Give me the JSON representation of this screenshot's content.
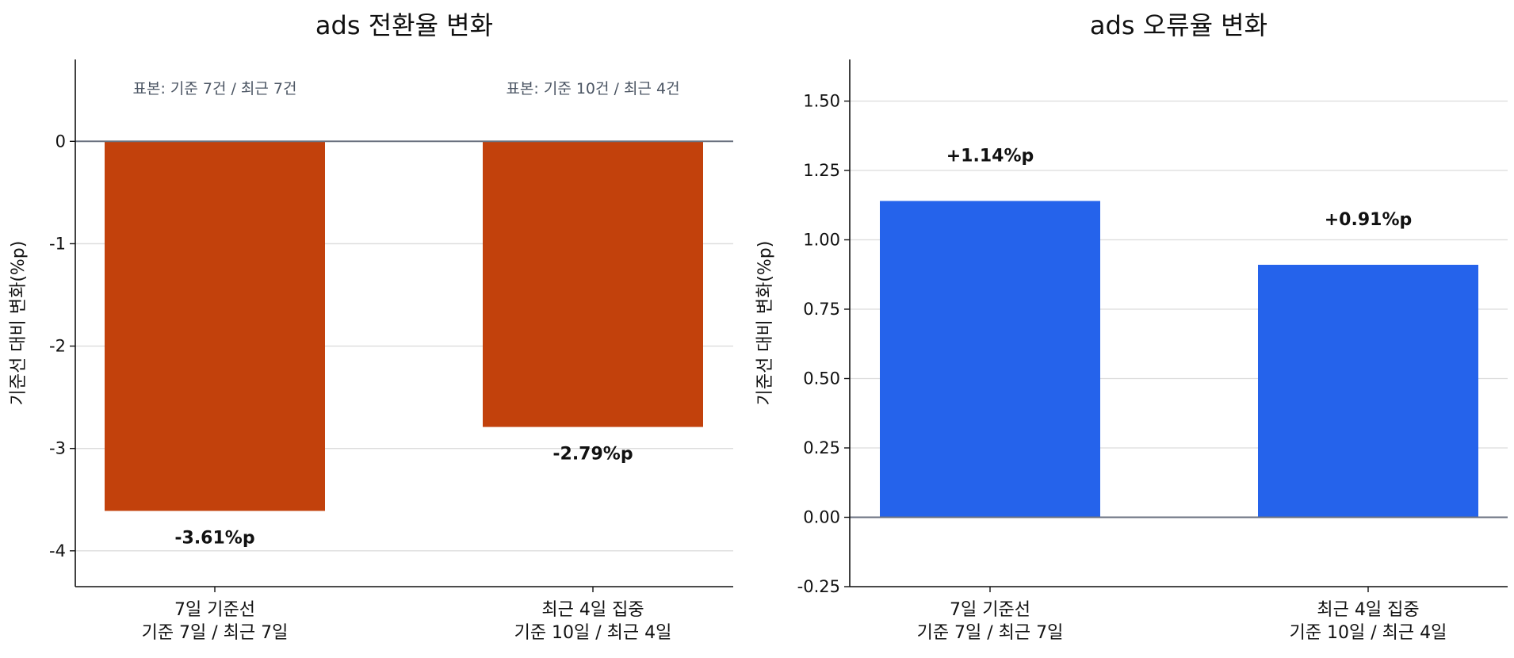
{
  "colors": {
    "negative_bar": "#c2410c",
    "positive_bar": "#2563eb",
    "grid": "#dcdcdc",
    "zero_line": "#6b7280",
    "axis": "#111111"
  },
  "chart_data": [
    {
      "type": "bar",
      "title": "ads 전환율 변화",
      "ylabel": "기준선 대비 변화(%p)",
      "categories": [
        [
          "7일 기준선",
          "기준 7일 / 최근 7일"
        ],
        [
          "최근 4일 집중",
          "기준 10일 / 최근 4일"
        ]
      ],
      "values": [
        -3.61,
        -2.79
      ],
      "data_labels": [
        "-3.61%p",
        "-2.79%p"
      ],
      "sample_notes": [
        "표본: 기준 7건 / 최근 7건",
        "표본: 기준 10건 / 최근 4건"
      ],
      "yticks": [
        0,
        -1,
        -2,
        -3,
        -4
      ],
      "ytick_labels": [
        "0",
        "-1",
        "-2",
        "-3",
        "-4"
      ],
      "ylim": [
        -4.35,
        0.8
      ],
      "grid": true,
      "zero_line": true,
      "bar_color": "#c2410c"
    },
    {
      "type": "bar",
      "title": "ads 오류율 변화",
      "ylabel": "기준선 대비 변화(%p)",
      "categories": [
        [
          "7일 기준선",
          "기준 7일 / 최근 7일"
        ],
        [
          "최근 4일 집중",
          "기준 10일 / 최근 4일"
        ]
      ],
      "values": [
        1.14,
        0.91
      ],
      "data_labels": [
        "+1.14%p",
        "+0.91%p"
      ],
      "yticks": [
        1.5,
        1.25,
        1.0,
        0.75,
        0.5,
        0.25,
        0.0,
        -0.25
      ],
      "ytick_labels": [
        "1.50",
        "1.25",
        "1.00",
        "0.75",
        "0.50",
        "0.25",
        "0.00",
        "-0.25"
      ],
      "ylim": [
        -0.25,
        1.65
      ],
      "grid": true,
      "zero_line": true,
      "bar_color": "#2563eb"
    }
  ]
}
